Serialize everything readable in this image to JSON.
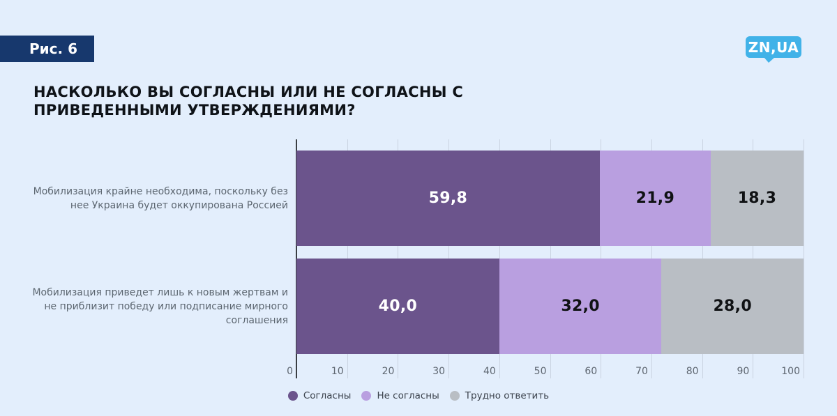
{
  "page": {
    "figure_label": "Рис. 6",
    "logo_text": "ZN,UA",
    "title_lines": [
      "НАСКОЛЬКО ВЫ СОГЛАСНЫ ИЛИ НЕ СОГЛАСНЫ С",
      "ПРИВЕДЕННЫМИ УТВЕРЖДЕНИЯМИ?"
    ]
  },
  "colors": {
    "background": "#e3eefc",
    "badge": "#17386d",
    "logo": "#41b2e8",
    "axis": "#3a3e43",
    "grid": "#c9d3e1"
  },
  "chart_data": {
    "type": "bar",
    "orientation": "horizontal",
    "stacked": true,
    "title": "НАСКОЛЬКО ВЫ СОГЛАСНЫ ИЛИ НЕ СОГЛАСНЫ С ПРИВЕДЕННЫМИ УТВЕРЖДЕНИЯМИ?",
    "categories": [
      "Мобилизация крайне необходима, поскольку без нее Украина будет оккупирована Россией",
      "Мобилизация приведет лишь к новым жертвам и не приблизит победу или подписание мирного соглашения"
    ],
    "series": [
      {
        "name": "Согласны",
        "color": "#6b548c",
        "text_color": "#ffffff",
        "values": [
          59.8,
          40.0
        ],
        "labels": [
          "59,8",
          "40,0"
        ]
      },
      {
        "name": "Не согласны",
        "color": "#b99fe0",
        "text_color": "#101214",
        "values": [
          21.9,
          32.0
        ],
        "labels": [
          "21,9",
          "32,0"
        ]
      },
      {
        "name": "Трудно ответить",
        "color": "#b9bec4",
        "text_color": "#101214",
        "values": [
          18.3,
          28.0
        ],
        "labels": [
          "18,3",
          "28,0"
        ]
      }
    ],
    "xlim": [
      0,
      100
    ],
    "xticks": [
      0,
      10,
      20,
      30,
      40,
      50,
      60,
      70,
      80,
      90,
      100
    ],
    "grid": true,
    "legend_position": "bottom"
  }
}
